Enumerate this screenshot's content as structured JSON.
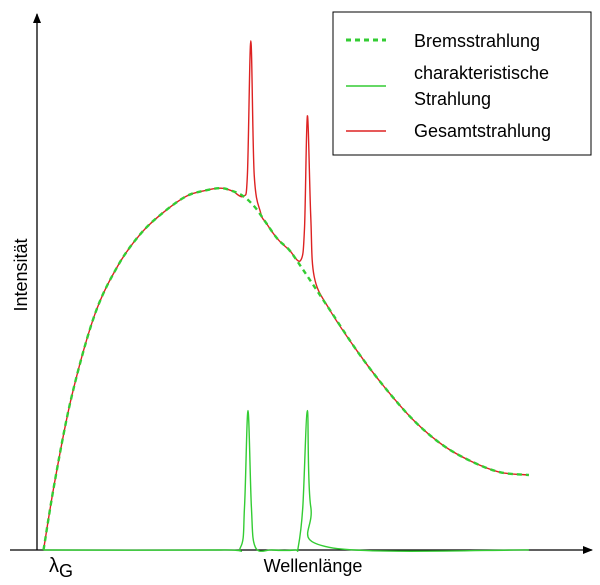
{
  "chart_data": {
    "type": "line",
    "title": "",
    "xlabel": "Wellenlänge",
    "ylabel": "Intensität",
    "x_tick_label": {
      "main": "λ",
      "sub": "G"
    },
    "axis_ticks_shown": false,
    "grid": false,
    "legend_position": "top-right",
    "xlim": [
      0,
      100
    ],
    "ylim": [
      0,
      100
    ],
    "series": [
      {
        "name": "Bremsstrahlung",
        "color": "#33cc33",
        "style": "dashed",
        "x": [
          5,
          7,
          10,
          14,
          18,
          22,
          26,
          30,
          33,
          36,
          38,
          40,
          42,
          44,
          46,
          48,
          50,
          55,
          60,
          65,
          70,
          75,
          80,
          85,
          90
        ],
        "y": [
          0,
          13,
          29,
          44,
          53,
          59,
          63,
          66,
          67,
          67.5,
          67,
          66,
          64,
          61,
          58,
          56,
          53,
          45,
          37,
          30,
          24,
          19.5,
          16.5,
          14.5,
          14
        ]
      },
      {
        "name": "charakteristische Strahlung",
        "color": "#33cc33",
        "style": "solid",
        "x": [
          5,
          36,
          39.5,
          40.2,
          40.8,
          41.4,
          42.1,
          45,
          49,
          49.6,
          50.4,
          51.2,
          51.8,
          55,
          90
        ],
        "y": [
          0,
          0,
          0.5,
          8,
          26,
          8,
          0.5,
          0,
          0,
          0.5,
          8,
          26,
          8,
          0.5,
          0
        ]
      },
      {
        "name": "Gesamtstrahlung",
        "color": "#dd2222",
        "style": "solid",
        "x": [
          5,
          7,
          10,
          14,
          18,
          22,
          26,
          30,
          33,
          36,
          38,
          40,
          40.7,
          41.3,
          41.9,
          43,
          44,
          46,
          48,
          50,
          50.7,
          51.2,
          51.8,
          52.4,
          55,
          60,
          65,
          70,
          75,
          80,
          85,
          90
        ],
        "y": [
          0,
          13,
          29,
          44,
          53,
          59,
          63,
          66,
          67,
          67.5,
          67,
          66,
          70,
          95,
          70,
          63,
          61,
          58,
          56,
          54,
          60,
          81,
          62,
          51,
          45,
          37,
          30,
          24,
          19.5,
          16.5,
          14.5,
          14
        ]
      }
    ]
  }
}
